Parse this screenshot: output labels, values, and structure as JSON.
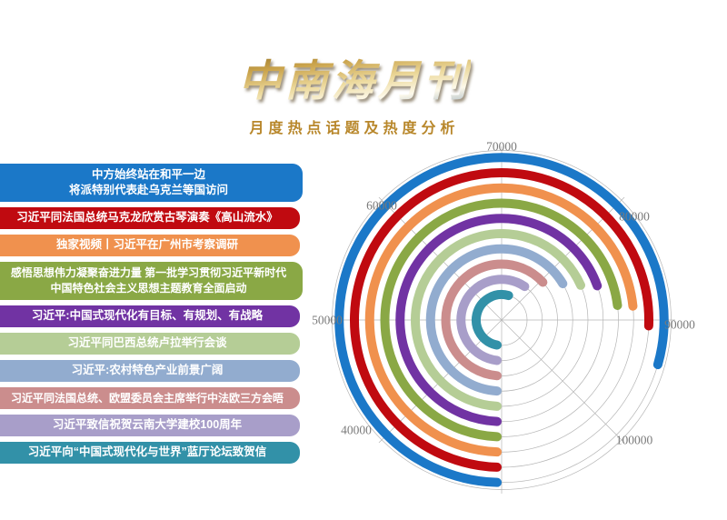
{
  "header": {
    "title": "中南海月刊",
    "subtitle": "月度热点话题及热度分析"
  },
  "topics": {
    "items": [
      {
        "text": "中方始终站在和平一边\n将派特别代表赴乌克兰等国访问",
        "color": "#1b78c8",
        "two_line": true
      },
      {
        "text": "习近平同法国总统马克龙欣赏古琴演奏《高山流水》",
        "color": "#c00a10",
        "two_line": false
      },
      {
        "text": "独家视频丨习近平在广州市考察调研",
        "color": "#f0914e",
        "two_line": false
      },
      {
        "text": "感悟思想伟力凝聚奋进力量 第一批学习贯彻习近平新时代\n中国特色社会主义思想主题教育全面启动",
        "color": "#8aa845",
        "two_line": true
      },
      {
        "text": "习近平:中国式现代化有目标、有规划、有战略",
        "color": "#7133a3",
        "two_line": false
      },
      {
        "text": "习近平同巴西总统卢拉举行会谈",
        "color": "#b5cd96",
        "two_line": false
      },
      {
        "text": "习近平:农村特色产业前景广阔",
        "color": "#92accf",
        "two_line": false
      },
      {
        "text": "习近平同法国总统、欧盟委员会主席举行中法欧三方会晤",
        "color": "#cb8d8d",
        "two_line": false
      },
      {
        "text": "习近平致信祝贺云南大学建校100周年",
        "color": "#a89ec9",
        "two_line": false
      },
      {
        "text": "习近平向“中国式现代化与世界”蓝厅论坛致贺信",
        "color": "#3291a8",
        "two_line": false
      }
    ]
  },
  "chart_data": {
    "type": "bar",
    "coordinate": "polar",
    "description": "Radial heat-index bars; ring order outermost to innermost matches topic list top to bottom; arc angle encodes heat value",
    "categories": [
      "中方始终站在和平一边 将派特别代表赴乌克兰等国访问",
      "习近平同法国总统马克龙欣赏古琴演奏《高山流水》",
      "独家视频丨习近平在广州市考察调研",
      "感悟思想伟力凝聚奋进力量 第一批学习贯彻习近平新时代中国特色社会主义思想主题教育全面启动",
      "习近平:中国式现代化有目标、有规划、有战略",
      "习近平同巴西总统卢拉举行会谈",
      "习近平:农村特色产业前景广阔",
      "习近平同法国总统、欧盟委员会主席举行中法欧三方会晤",
      "习近平致信祝贺云南大学建校100周年",
      "习近平向“中国式现代化与世界”蓝厅论坛致贺信"
    ],
    "values": [
      93900,
      90900,
      89100,
      88900,
      86200,
      85400,
      84000,
      81600,
      79100,
      75800
    ],
    "colors": [
      "#1b78c8",
      "#c00a10",
      "#f0914e",
      "#8aa845",
      "#7133a3",
      "#b5cd96",
      "#92accf",
      "#cb8d8d",
      "#a89ec9",
      "#3291a8"
    ],
    "angular_axis": {
      "min": 30000,
      "max": 110000,
      "step": 10000,
      "deg_per_step": 45,
      "start_angle_clock_deg": 180,
      "direction": "clockwise",
      "tick_labels": [
        "40000",
        "50000",
        "60000",
        "70000",
        "80000",
        "90000",
        "100000"
      ]
    },
    "grid": {
      "concentric_circles": true,
      "spokes_every_deg": 45,
      "color": "#b5b5b5"
    },
    "legend": "none"
  }
}
